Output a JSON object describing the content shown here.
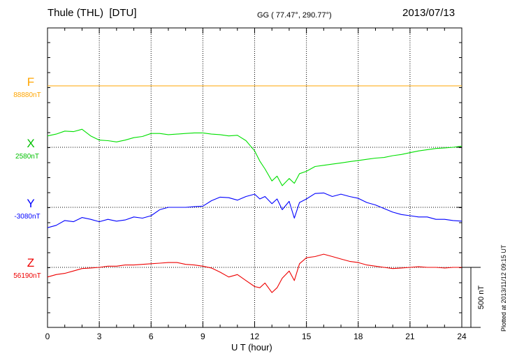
{
  "header": {
    "station": "Thule (THL)  [DTU]",
    "coords": "GG ( 77.47°, 290.77°)",
    "date": "2013/07/13"
  },
  "plotted_note": "Plotted at 2013/11/12 09:15 UT",
  "scale_bar_label": "500 nT",
  "chart_data": {
    "type": "line",
    "title": "Thule (THL)  [DTU]",
    "xlabel": "U T (hour)",
    "xlim": [
      0,
      24
    ],
    "xticks": [
      "0",
      "3",
      "6",
      "9",
      "12",
      "15",
      "18",
      "21",
      "24"
    ],
    "grid": true,
    "scale_nT": 500,
    "series": [
      {
        "name": "F",
        "baseline": "88880nT",
        "color": "#ffa500",
        "x": [
          0,
          24
        ],
        "y": [
          0,
          0
        ]
      },
      {
        "name": "X",
        "baseline": "2580nT",
        "color": "#00e000",
        "x": [
          0,
          0.5,
          1,
          1.5,
          2,
          2.5,
          3,
          3.5,
          4,
          4.5,
          5,
          5.5,
          6,
          6.5,
          7,
          7.5,
          8,
          8.5,
          9,
          9.5,
          10,
          10.5,
          11,
          11.5,
          12,
          12.3,
          12.6,
          13,
          13.3,
          13.6,
          14,
          14.3,
          14.6,
          15,
          15.5,
          16,
          16.5,
          17,
          17.5,
          18,
          18.5,
          19,
          19.5,
          20,
          20.5,
          21,
          21.5,
          22,
          22.5,
          23,
          23.5,
          24
        ],
        "y": [
          95,
          110,
          135,
          130,
          150,
          95,
          60,
          55,
          45,
          60,
          80,
          90,
          115,
          115,
          105,
          110,
          115,
          120,
          120,
          110,
          105,
          95,
          100,
          55,
          -30,
          -115,
          -180,
          -280,
          -240,
          -320,
          -260,
          -300,
          -220,
          -200,
          -160,
          -150,
          -140,
          -130,
          -120,
          -110,
          -100,
          -90,
          -85,
          -70,
          -60,
          -45,
          -30,
          -20,
          -10,
          -5,
          0,
          10
        ]
      },
      {
        "name": "Y",
        "baseline": "-3080nT",
        "color": "#0000ff",
        "x": [
          0,
          0.5,
          1,
          1.5,
          2,
          2.5,
          3,
          3.5,
          4,
          4.5,
          5,
          5.5,
          6,
          6.5,
          7,
          7.5,
          8,
          8.5,
          9,
          9.5,
          10,
          10.5,
          11,
          11.5,
          12,
          12.3,
          12.6,
          13,
          13.3,
          13.6,
          14,
          14.3,
          14.6,
          15,
          15.5,
          16,
          16.5,
          17,
          17.5,
          18,
          18.5,
          19,
          19.5,
          20,
          20.5,
          21,
          21.5,
          22,
          22.5,
          23,
          23.5,
          24
        ],
        "y": [
          -170,
          -150,
          -110,
          -120,
          -85,
          -100,
          -120,
          -100,
          -115,
          -105,
          -80,
          -90,
          -70,
          -20,
          0,
          0,
          0,
          5,
          10,
          55,
          85,
          80,
          60,
          90,
          110,
          70,
          90,
          30,
          70,
          -20,
          50,
          -90,
          40,
          70,
          115,
          120,
          90,
          110,
          90,
          75,
          40,
          20,
          -10,
          -40,
          -60,
          -70,
          -80,
          -80,
          -100,
          -100,
          -110,
          -115
        ]
      },
      {
        "name": "Z",
        "baseline": "56190nT",
        "color": "#ee0000",
        "x": [
          0,
          0.5,
          1,
          1.5,
          2,
          2.5,
          3,
          3.5,
          4,
          4.5,
          5,
          5.5,
          6,
          6.5,
          7,
          7.5,
          8,
          8.5,
          9,
          9.5,
          10,
          10.5,
          11,
          11.5,
          12,
          12.3,
          12.6,
          13,
          13.3,
          13.6,
          14,
          14.3,
          14.6,
          15,
          15.5,
          16,
          16.5,
          17,
          17.5,
          18,
          18.5,
          19,
          19.5,
          20,
          20.5,
          21,
          21.5,
          22,
          22.5,
          23,
          23.5,
          24
        ],
        "y": [
          -80,
          -60,
          -50,
          -30,
          -10,
          -5,
          0,
          10,
          10,
          20,
          20,
          25,
          30,
          35,
          40,
          40,
          25,
          20,
          10,
          -5,
          -40,
          -80,
          -60,
          -110,
          -160,
          -170,
          -130,
          -210,
          -170,
          -90,
          -30,
          -110,
          30,
          80,
          90,
          110,
          90,
          70,
          50,
          40,
          20,
          10,
          0,
          -10,
          -5,
          0,
          5,
          0,
          0,
          -5,
          0,
          0
        ]
      }
    ]
  }
}
